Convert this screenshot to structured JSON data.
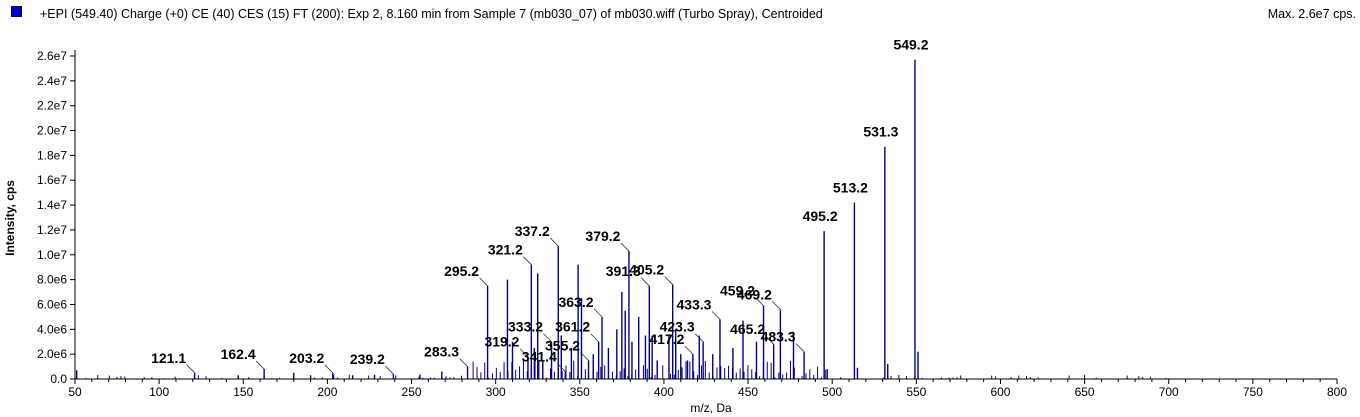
{
  "header": {
    "title": "+EPI (549.40) Charge (+0) CE (40) CES (15) FT (200): Exp 2, 8.160 min from Sample 7 (mb030_07) of mb030.wiff (Turbo Spray), Centroided",
    "max_label": "Max. 2.6e7 cps.",
    "legend_color": "#0000cc"
  },
  "chart_data": {
    "type": "bar",
    "title": "+EPI (549.40) Charge (+0) CE (40) CES (15) FT (200): Exp 2, 8.160 min from Sample 7 (mb030_07) of mb030.wiff (Turbo Spray), Centroided",
    "xlabel": "m/z, Da",
    "ylabel": "Intensity, cps",
    "xlim": [
      50,
      800
    ],
    "ylim": [
      0,
      26000000
    ],
    "grid": false,
    "bar_color": "#00008b",
    "x_ticks": [
      {
        "value": 50,
        "label": "50"
      },
      {
        "value": 100,
        "label": "100"
      },
      {
        "value": 150,
        "label": "150"
      },
      {
        "value": 200,
        "label": "200"
      },
      {
        "value": 250,
        "label": "250"
      },
      {
        "value": 300,
        "label": "300"
      },
      {
        "value": 350,
        "label": "350"
      },
      {
        "value": 400,
        "label": "400"
      },
      {
        "value": 450,
        "label": "450"
      },
      {
        "value": 500,
        "label": "500"
      },
      {
        "value": 550,
        "label": "550"
      },
      {
        "value": 600,
        "label": "600"
      },
      {
        "value": 650,
        "label": "650"
      },
      {
        "value": 700,
        "label": "700"
      },
      {
        "value": 750,
        "label": "750"
      },
      {
        "value": 800,
        "label": "800"
      }
    ],
    "y_ticks": [
      {
        "value": 0,
        "label": "0.0"
      },
      {
        "value": 2000000,
        "label": "2.0e6"
      },
      {
        "value": 4000000,
        "label": "4.0e6"
      },
      {
        "value": 6000000,
        "label": "6.0e6"
      },
      {
        "value": 8000000,
        "label": "8.0e6"
      },
      {
        "value": 10000000,
        "label": "1.0e7"
      },
      {
        "value": 12000000,
        "label": "1.2e7"
      },
      {
        "value": 14000000,
        "label": "1.4e7"
      },
      {
        "value": 16000000,
        "label": "1.6e7"
      },
      {
        "value": 18000000,
        "label": "1.8e7"
      },
      {
        "value": 20000000,
        "label": "2.0e7"
      },
      {
        "value": 22000000,
        "label": "2.2e7"
      },
      {
        "value": 24000000,
        "label": "2.4e7"
      },
      {
        "value": 26000000,
        "label": "2.6e7"
      }
    ],
    "peaks": [
      {
        "mz": 51,
        "intensity": 700000
      },
      {
        "mz": 121.1,
        "intensity": 500000,
        "label": "121.1"
      },
      {
        "mz": 147,
        "intensity": 300000
      },
      {
        "mz": 162.4,
        "intensity": 800000,
        "label": "162.4"
      },
      {
        "mz": 180,
        "intensity": 500000
      },
      {
        "mz": 190,
        "intensity": 300000
      },
      {
        "mz": 203.2,
        "intensity": 500000,
        "label": "203.2"
      },
      {
        "mz": 215,
        "intensity": 300000
      },
      {
        "mz": 228,
        "intensity": 350000
      },
      {
        "mz": 239.2,
        "intensity": 400000,
        "label": "239.2"
      },
      {
        "mz": 255,
        "intensity": 350000
      },
      {
        "mz": 268,
        "intensity": 600000
      },
      {
        "mz": 283.3,
        "intensity": 1000000,
        "label": "283.3"
      },
      {
        "mz": 295.2,
        "intensity": 7500000,
        "label": "295.2"
      },
      {
        "mz": 307,
        "intensity": 8000000
      },
      {
        "mz": 310,
        "intensity": 3000000
      },
      {
        "mz": 319.2,
        "intensity": 1800000,
        "label": "319.2"
      },
      {
        "mz": 321.2,
        "intensity": 9200000,
        "label": "321.2"
      },
      {
        "mz": 323,
        "intensity": 2500000
      },
      {
        "mz": 325,
        "intensity": 8500000
      },
      {
        "mz": 328,
        "intensity": 1500000
      },
      {
        "mz": 333.2,
        "intensity": 3000000,
        "label": "333.2"
      },
      {
        "mz": 337.2,
        "intensity": 10700000,
        "label": "337.2"
      },
      {
        "mz": 339,
        "intensity": 3500000
      },
      {
        "mz": 341.4,
        "intensity": 600000,
        "label": "341.4"
      },
      {
        "mz": 345,
        "intensity": 2500000
      },
      {
        "mz": 349,
        "intensity": 9200000
      },
      {
        "mz": 351,
        "intensity": 6500000
      },
      {
        "mz": 355.2,
        "intensity": 1500000,
        "label": "355.2"
      },
      {
        "mz": 358,
        "intensity": 2000000
      },
      {
        "mz": 361.2,
        "intensity": 3000000,
        "label": "361.2"
      },
      {
        "mz": 363.2,
        "intensity": 5000000,
        "label": "363.2"
      },
      {
        "mz": 367,
        "intensity": 2500000
      },
      {
        "mz": 372,
        "intensity": 4000000
      },
      {
        "mz": 375,
        "intensity": 7000000
      },
      {
        "mz": 377,
        "intensity": 5500000
      },
      {
        "mz": 379.2,
        "intensity": 10300000,
        "label": "379.2"
      },
      {
        "mz": 381,
        "intensity": 3000000
      },
      {
        "mz": 385,
        "intensity": 5000000
      },
      {
        "mz": 389,
        "intensity": 3500000
      },
      {
        "mz": 391.3,
        "intensity": 7500000,
        "label": "391.3"
      },
      {
        "mz": 393,
        "intensity": 3500000
      },
      {
        "mz": 396,
        "intensity": 1500000
      },
      {
        "mz": 403,
        "intensity": 3500000
      },
      {
        "mz": 405.2,
        "intensity": 7600000,
        "label": "405.2"
      },
      {
        "mz": 407,
        "intensity": 4000000
      },
      {
        "mz": 410,
        "intensity": 2000000
      },
      {
        "mz": 414,
        "intensity": 1500000
      },
      {
        "mz": 417.2,
        "intensity": 2000000,
        "label": "417.2"
      },
      {
        "mz": 421,
        "intensity": 3500000
      },
      {
        "mz": 423.3,
        "intensity": 3000000,
        "label": "423.3"
      },
      {
        "mz": 429,
        "intensity": 2000000
      },
      {
        "mz": 433.3,
        "intensity": 4800000,
        "label": "433.3"
      },
      {
        "mz": 441,
        "intensity": 2500000
      },
      {
        "mz": 447,
        "intensity": 4700000
      },
      {
        "mz": 455,
        "intensity": 3000000
      },
      {
        "mz": 459.2,
        "intensity": 5900000,
        "label": "459.2"
      },
      {
        "mz": 465.2,
        "intensity": 2800000,
        "label": "465.2"
      },
      {
        "mz": 469.2,
        "intensity": 5600000,
        "label": "469.2"
      },
      {
        "mz": 477,
        "intensity": 3800000
      },
      {
        "mz": 483.3,
        "intensity": 2200000,
        "label": "483.3"
      },
      {
        "mz": 495.2,
        "intensity": 11900000,
        "label": "495.2"
      },
      {
        "mz": 497,
        "intensity": 800000
      },
      {
        "mz": 513.2,
        "intensity": 14200000,
        "label": "513.2"
      },
      {
        "mz": 515,
        "intensity": 900000
      },
      {
        "mz": 531.3,
        "intensity": 18700000,
        "label": "531.3"
      },
      {
        "mz": 533,
        "intensity": 1200000
      },
      {
        "mz": 549.2,
        "intensity": 25700000,
        "label": "549.2"
      },
      {
        "mz": 551,
        "intensity": 2200000
      }
    ]
  }
}
